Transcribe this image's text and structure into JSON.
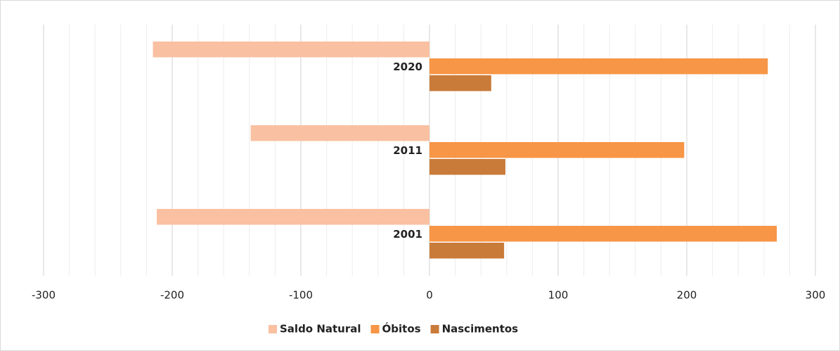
{
  "chart_data": {
    "type": "hbar",
    "categories": [
      "2020",
      "2011",
      "2001"
    ],
    "series": [
      {
        "name": "Saldo Natural",
        "color": "#f9c0a2",
        "values": [
          -215,
          -139,
          -212
        ]
      },
      {
        "name": "Óbitos",
        "color": "#f79646",
        "values": [
          263,
          198,
          270
        ]
      },
      {
        "name": "Nascimentos",
        "color": "#c97b3a",
        "values": [
          48,
          59,
          58
        ]
      }
    ],
    "xlim": [
      -300,
      300
    ],
    "xticks": [
      -300,
      -200,
      -100,
      0,
      100,
      200,
      300
    ],
    "minor_xticks": [
      -280,
      -260,
      -240,
      -220,
      -180,
      -160,
      -140,
      -120,
      -80,
      -60,
      -40,
      -20,
      20,
      40,
      60,
      80,
      120,
      140,
      160,
      180,
      220,
      240,
      260,
      280
    ],
    "grid": true,
    "legend": "bottom"
  }
}
